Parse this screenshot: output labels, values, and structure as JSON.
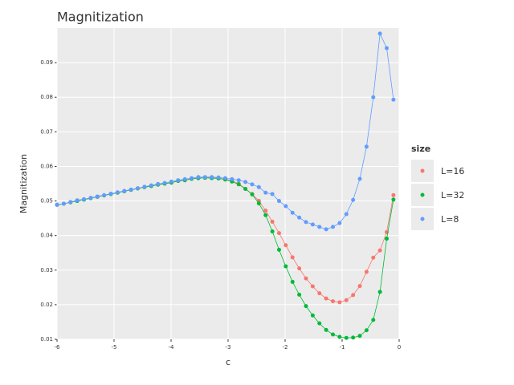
{
  "chart_data": {
    "type": "line",
    "title": "Magnitization",
    "xlabel": "c",
    "ylabel": "Magnitization",
    "legend_title": "size",
    "legend": "right",
    "grid": true,
    "x": [
      -6,
      -5.882,
      -5.764,
      -5.646,
      -5.528,
      -5.41,
      -5.292,
      -5.174,
      -5.056,
      -4.938,
      -4.82,
      -4.702,
      -4.584,
      -4.466,
      -4.348,
      -4.23,
      -4.112,
      -3.994,
      -3.876,
      -3.758,
      -3.64,
      -3.522,
      -3.404,
      -3.286,
      -3.168,
      -3.05,
      -2.932,
      -2.814,
      -2.696,
      -2.578,
      -2.46,
      -2.342,
      -2.224,
      -2.106,
      -1.988,
      -1.87,
      -1.752,
      -1.634,
      -1.516,
      -1.398,
      -1.28,
      -1.162,
      -1.044,
      -0.926,
      -0.808,
      -0.69,
      -0.572,
      -0.454,
      -0.336,
      -0.218,
      -0.1
    ],
    "series": [
      {
        "name": "L=16",
        "color": "#f8766d",
        "values": [
          0.0489,
          0.0492,
          0.0496,
          0.05,
          0.0504,
          0.0508,
          0.0512,
          0.0516,
          0.052,
          0.0524,
          0.0528,
          0.0532,
          0.0536,
          0.054,
          0.0543,
          0.0547,
          0.055,
          0.0553,
          0.0558,
          0.056,
          0.0564,
          0.0566,
          0.0567,
          0.0567,
          0.0566,
          0.0563,
          0.0558,
          0.055,
          0.0535,
          0.052,
          0.05,
          0.0472,
          0.044,
          0.0407,
          0.0372,
          0.0337,
          0.0305,
          0.0276,
          0.0253,
          0.0233,
          0.0218,
          0.021,
          0.0207,
          0.0213,
          0.0228,
          0.0254,
          0.0295,
          0.0336,
          0.0357,
          0.041,
          0.0517
        ]
      },
      {
        "name": "L=32",
        "color": "#00ba38",
        "values": [
          0.0489,
          0.0492,
          0.0496,
          0.05,
          0.0504,
          0.0508,
          0.0512,
          0.0516,
          0.052,
          0.0524,
          0.0528,
          0.0532,
          0.0536,
          0.054,
          0.0543,
          0.0547,
          0.055,
          0.0553,
          0.0558,
          0.056,
          0.0564,
          0.0566,
          0.0567,
          0.0566,
          0.0565,
          0.0562,
          0.0556,
          0.0548,
          0.0535,
          0.0519,
          0.0493,
          0.0459,
          0.0412,
          0.0359,
          0.0311,
          0.0266,
          0.0229,
          0.0196,
          0.0169,
          0.0146,
          0.0127,
          0.0114,
          0.0107,
          0.0104,
          0.0105,
          0.011,
          0.0126,
          0.0156,
          0.0237,
          0.0391,
          0.0504
        ]
      },
      {
        "name": "L=8",
        "color": "#619cff",
        "values": [
          0.0489,
          0.0492,
          0.0497,
          0.0502,
          0.0505,
          0.0509,
          0.0513,
          0.0517,
          0.0521,
          0.0525,
          0.0529,
          0.0533,
          0.0537,
          0.0541,
          0.0545,
          0.0549,
          0.0552,
          0.0556,
          0.056,
          0.0563,
          0.0566,
          0.0569,
          0.0569,
          0.0569,
          0.0568,
          0.0566,
          0.0563,
          0.056,
          0.0555,
          0.0548,
          0.054,
          0.0524,
          0.052,
          0.05,
          0.0485,
          0.0466,
          0.0452,
          0.0439,
          0.0432,
          0.0425,
          0.0418,
          0.0425,
          0.0436,
          0.0462,
          0.0503,
          0.0564,
          0.0657,
          0.08,
          0.0984,
          0.0942,
          0.0793
        ]
      }
    ],
    "xlim": [
      -6,
      0
    ],
    "xticks": [
      -6,
      -5,
      -4,
      -3,
      -2,
      -1,
      0
    ],
    "ylim": [
      0.01,
      0.1
    ],
    "yticks": [
      0.01,
      0.02,
      0.03,
      0.04,
      0.05,
      0.06,
      0.07,
      0.08,
      0.09
    ]
  }
}
